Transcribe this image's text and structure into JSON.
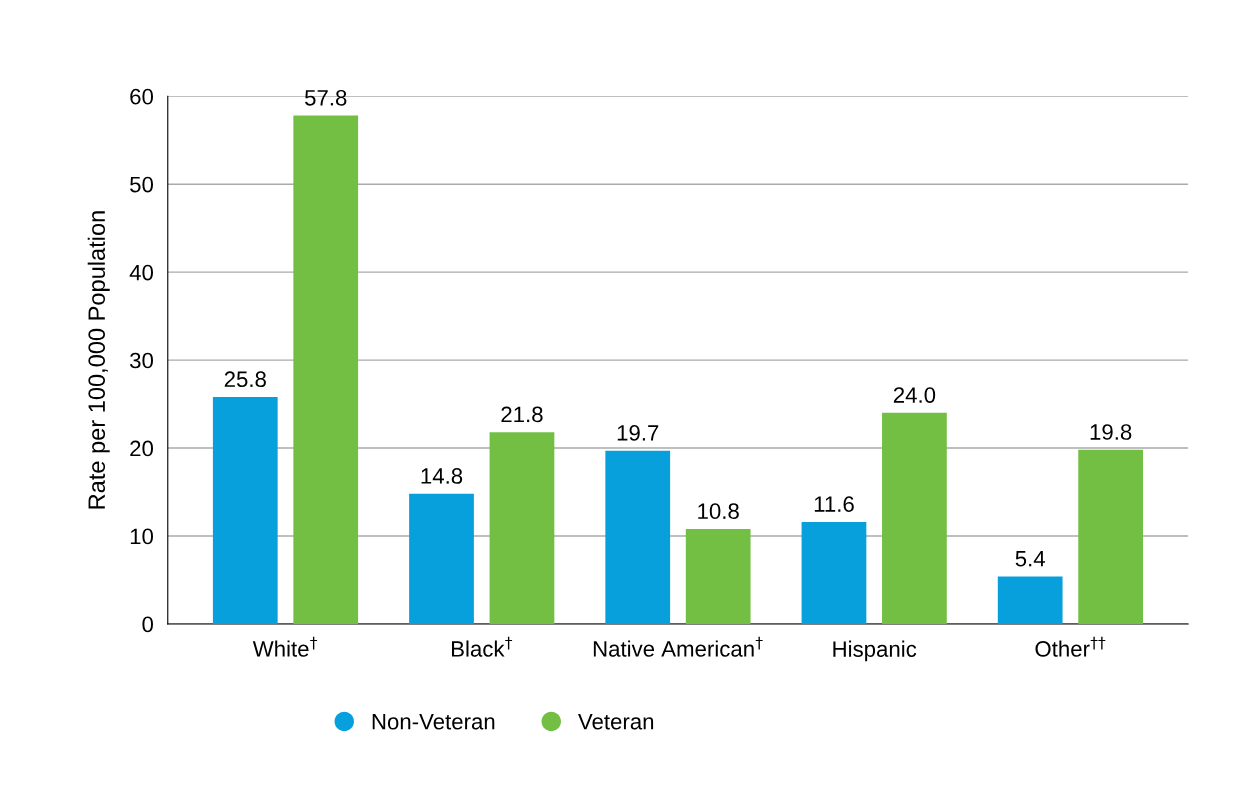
{
  "chart_data": {
    "type": "bar",
    "ylabel": "Rate per 100,000 Population",
    "categories": [
      "White$^{†}$",
      "Black$^{†}$",
      "Native American$^{†}$",
      "Hispanic",
      "Other$^{††}$"
    ],
    "series": [
      {
        "name": "Non-Veteran",
        "color": "#08a0dc",
        "values": [
          25.8,
          14.8,
          19.7,
          11.6,
          5.4
        ],
        "value_labels": [
          "25.8",
          "14.8",
          "19.7",
          "11.6",
          "5.4"
        ]
      },
      {
        "name": "Veteran",
        "color": "#72bf44",
        "values": [
          57.8,
          21.8,
          10.8,
          24.0,
          19.8
        ],
        "value_labels": [
          "57.8",
          "21.8",
          "10.8",
          "24.0",
          "19.8"
        ]
      }
    ],
    "ylim": [
      0,
      60
    ],
    "yticks": [
      0,
      10,
      20,
      30,
      40,
      50,
      60
    ],
    "grid": "y",
    "legend": "bottom"
  }
}
